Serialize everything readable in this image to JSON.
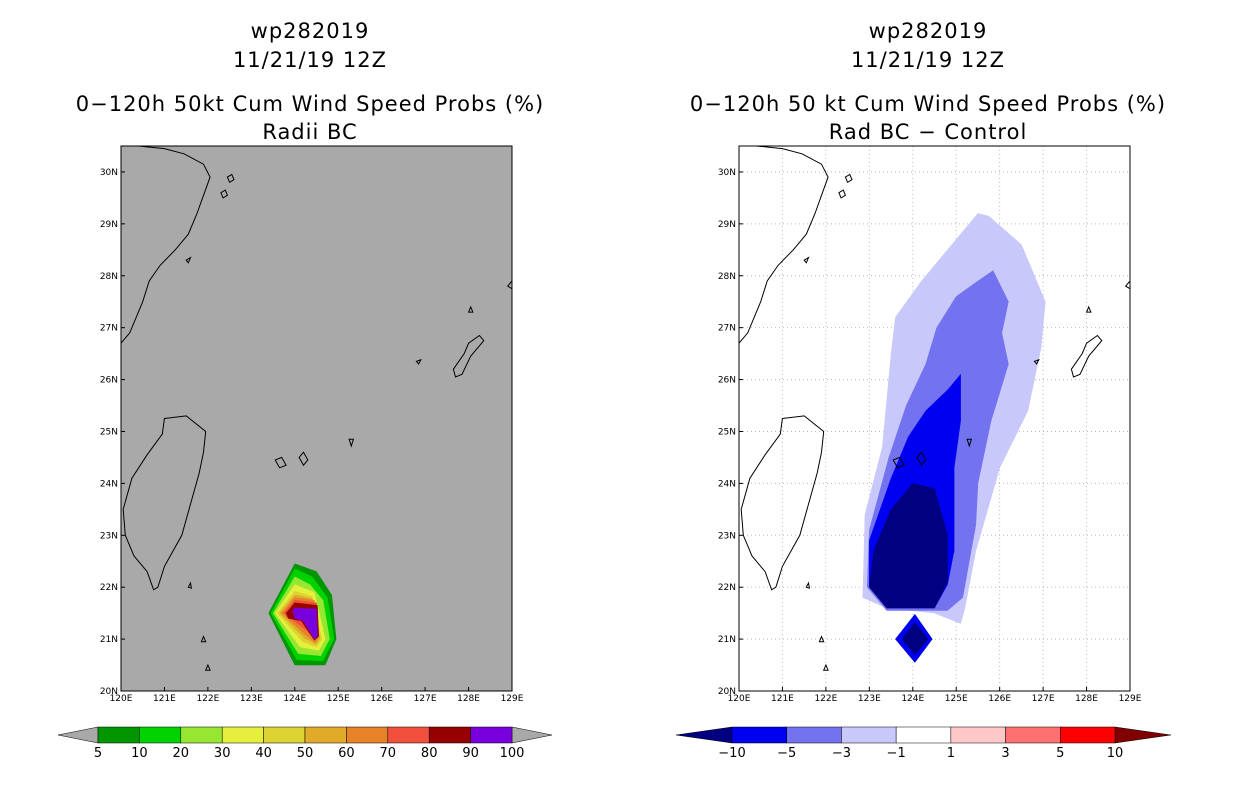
{
  "left": {
    "header": {
      "storm": "wp282019",
      "date": "11/21/19 12Z",
      "product": "0−120h 50kt Cum Wind Speed Probs (%)",
      "subtitle": "Radii BC"
    },
    "background": "#a9a9a9"
  },
  "right": {
    "header": {
      "storm": "wp282019",
      "date": "11/21/19 12Z",
      "product": "0−120h 50 kt Cum Wind Speed Probs (%)",
      "subtitle": "Rad BC − Control"
    },
    "background": "#ffffff"
  },
  "chart_data": [
    {
      "type": "heatmap",
      "title": "0-120h 50kt Cum Wind Speed Probs (%) - Radii BC",
      "x_ticks": [
        "120E",
        "121E",
        "122E",
        "123E",
        "124E",
        "125E",
        "126E",
        "127E",
        "128E",
        "129E"
      ],
      "y_ticks": [
        "20N",
        "21N",
        "22N",
        "23N",
        "24N",
        "25N",
        "26N",
        "27N",
        "28N",
        "29N",
        "30N"
      ],
      "xlim": [
        120,
        129
      ],
      "ylim": [
        20,
        30.5
      ],
      "colorbar": {
        "labels": [
          "5",
          "10",
          "20",
          "30",
          "40",
          "50",
          "60",
          "70",
          "80",
          "90",
          "100"
        ],
        "colors": [
          "#009600",
          "#00d200",
          "#96e632",
          "#e6f03c",
          "#dcd232",
          "#e1aa28",
          "#e68228",
          "#f0503c",
          "#960000",
          "#7800dc"
        ],
        "end_colors": [
          "#a9a9a9",
          "#a9a9a9"
        ]
      },
      "contours": [
        {
          "level": 5,
          "color": "#009600",
          "points": [
            [
              123.4,
              21.5
            ],
            [
              124.0,
              22.45
            ],
            [
              124.5,
              22.3
            ],
            [
              124.85,
              21.85
            ],
            [
              124.95,
              21.0
            ],
            [
              124.7,
              20.5
            ],
            [
              124.0,
              20.5
            ]
          ]
        },
        {
          "level": 10,
          "color": "#00d200",
          "points": [
            [
              123.45,
              21.5
            ],
            [
              124.0,
              22.35
            ],
            [
              124.4,
              22.2
            ],
            [
              124.75,
              21.8
            ],
            [
              124.9,
              21.0
            ],
            [
              124.65,
              20.58
            ],
            [
              124.05,
              20.6
            ]
          ]
        },
        {
          "level": 20,
          "color": "#96e632",
          "points": [
            [
              123.5,
              21.5
            ],
            [
              124.0,
              22.2
            ],
            [
              124.35,
              22.05
            ],
            [
              124.65,
              21.75
            ],
            [
              124.8,
              21.0
            ],
            [
              124.6,
              20.68
            ],
            [
              124.08,
              20.72
            ]
          ]
        },
        {
          "level": 30,
          "color": "#e6f03c",
          "points": [
            [
              123.55,
              21.5
            ],
            [
              124.0,
              22.05
            ],
            [
              124.45,
              21.9
            ],
            [
              124.7,
              21.0
            ],
            [
              124.55,
              20.78
            ],
            [
              124.12,
              20.85
            ]
          ]
        },
        {
          "level": 40,
          "color": "#dcd232",
          "points": [
            [
              123.6,
              21.5
            ],
            [
              124.0,
              21.92
            ],
            [
              124.4,
              21.82
            ],
            [
              124.62,
              21.0
            ],
            [
              124.5,
              20.85
            ],
            [
              124.18,
              20.95
            ]
          ]
        },
        {
          "level": 50,
          "color": "#e1aa28",
          "points": [
            [
              123.65,
              21.5
            ],
            [
              124.0,
              21.85
            ],
            [
              124.4,
              21.78
            ],
            [
              124.58,
              21.0
            ],
            [
              124.48,
              20.9
            ],
            [
              124.22,
              21.02
            ]
          ]
        },
        {
          "level": 60,
          "color": "#e68228",
          "points": [
            [
              123.7,
              21.5
            ],
            [
              124.0,
              21.8
            ],
            [
              124.45,
              21.75
            ],
            [
              124.55,
              21.05
            ],
            [
              124.47,
              20.93
            ],
            [
              124.25,
              21.08
            ]
          ]
        },
        {
          "level": 70,
          "color": "#f0503c",
          "points": [
            [
              123.75,
              21.5
            ],
            [
              124.0,
              21.75
            ],
            [
              124.5,
              21.7
            ],
            [
              124.55,
              21.1
            ],
            [
              124.47,
              20.97
            ],
            [
              124.3,
              21.15
            ]
          ]
        },
        {
          "level": 80,
          "color": "#960000",
          "points": [
            [
              123.8,
              21.5
            ],
            [
              124.0,
              21.7
            ],
            [
              124.52,
              21.65
            ],
            [
              124.55,
              21.05
            ],
            [
              124.45,
              20.98
            ],
            [
              124.15,
              21.35
            ],
            [
              123.85,
              21.4
            ]
          ]
        },
        {
          "level": 90,
          "color": "#7800dc",
          "points": [
            [
              123.95,
              21.55
            ],
            [
              124.0,
              21.6
            ],
            [
              124.5,
              21.58
            ],
            [
              124.52,
              21.05
            ],
            [
              124.45,
              21.0
            ],
            [
              124.2,
              21.35
            ],
            [
              124.0,
              21.4
            ]
          ]
        }
      ]
    },
    {
      "type": "heatmap",
      "title": "0-120h 50 kt Cum Wind Speed Probs (%) - Rad BC - Control",
      "x_ticks": [
        "120E",
        "121E",
        "122E",
        "123E",
        "124E",
        "125E",
        "126E",
        "127E",
        "128E",
        "129E"
      ],
      "y_ticks": [
        "20N",
        "21N",
        "22N",
        "23N",
        "24N",
        "25N",
        "26N",
        "27N",
        "28N",
        "29N",
        "30N"
      ],
      "xlim": [
        120,
        129
      ],
      "ylim": [
        20,
        30.5
      ],
      "colorbar": {
        "labels": [
          "−10",
          "−5",
          "−3",
          "−1",
          "1",
          "3",
          "5",
          "10"
        ],
        "colors": [
          "#0000f0",
          "#7373f0",
          "#c8c8fa",
          "#ffffff",
          "#ffc8c8",
          "#ff7070",
          "#ff0000"
        ],
        "end_colors": [
          "#000080",
          "#800000"
        ]
      },
      "contours": [
        {
          "level": -1,
          "color": "#c8c8fa",
          "points": [
            [
              122.85,
              21.8
            ],
            [
              122.9,
              23.4
            ],
            [
              123.3,
              24.7
            ],
            [
              123.5,
              26.5
            ],
            [
              123.6,
              27.2
            ],
            [
              124.2,
              27.9
            ],
            [
              125.0,
              28.7
            ],
            [
              125.5,
              29.2
            ],
            [
              125.75,
              29.15
            ],
            [
              126.5,
              28.6
            ],
            [
              127.05,
              27.5
            ],
            [
              126.95,
              26.6
            ],
            [
              126.65,
              25.4
            ],
            [
              126.0,
              24.3
            ],
            [
              125.45,
              22.7
            ],
            [
              125.2,
              21.6
            ],
            [
              125.1,
              21.3
            ],
            [
              124.5,
              21.5
            ],
            [
              123.4,
              21.6
            ]
          ]
        },
        {
          "level": -3,
          "color": "#7373f0",
          "points": [
            [
              122.95,
              22.0
            ],
            [
              123.0,
              23.1
            ],
            [
              123.45,
              24.5
            ],
            [
              123.85,
              25.5
            ],
            [
              124.3,
              26.3
            ],
            [
              124.55,
              27.0
            ],
            [
              125.0,
              27.6
            ],
            [
              125.5,
              27.9
            ],
            [
              125.85,
              28.1
            ],
            [
              126.2,
              27.5
            ],
            [
              126.05,
              26.9
            ],
            [
              126.2,
              26.3
            ],
            [
              125.8,
              25.2
            ],
            [
              125.5,
              24.0
            ],
            [
              125.45,
              23.2
            ],
            [
              125.15,
              21.8
            ],
            [
              124.8,
              21.55
            ],
            [
              123.4,
              21.55
            ]
          ]
        },
        {
          "level": -5,
          "color": "#0000f0",
          "points": [
            [
              123.0,
              22.0
            ],
            [
              123.0,
              22.9
            ],
            [
              123.5,
              24.1
            ],
            [
              123.9,
              24.9
            ],
            [
              124.3,
              25.4
            ],
            [
              124.8,
              25.8
            ],
            [
              125.1,
              26.1
            ],
            [
              125.1,
              25.2
            ],
            [
              124.95,
              24.3
            ],
            [
              124.95,
              23.3
            ],
            [
              124.95,
              22.7
            ],
            [
              124.8,
              22.05
            ],
            [
              124.5,
              21.6
            ],
            [
              123.4,
              21.6
            ]
          ]
        },
        {
          "level": -10,
          "color": "#000080",
          "points": [
            [
              123.0,
              22.0
            ],
            [
              123.1,
              22.7
            ],
            [
              123.5,
              23.5
            ],
            [
              124.0,
              24.0
            ],
            [
              124.5,
              23.9
            ],
            [
              124.8,
              23.0
            ],
            [
              124.8,
              22.1
            ],
            [
              124.5,
              21.6
            ],
            [
              123.4,
              21.6
            ]
          ]
        },
        {
          "level": -5,
          "color": "#0000f0",
          "points": [
            [
              123.6,
              21.0
            ],
            [
              124.05,
              21.48
            ],
            [
              124.45,
              21.0
            ],
            [
              124.05,
              20.55
            ]
          ]
        },
        {
          "level": -10,
          "color": "#000080",
          "points": [
            [
              123.75,
              21.0
            ],
            [
              124.05,
              21.32
            ],
            [
              124.35,
              21.0
            ],
            [
              124.05,
              20.7
            ]
          ]
        }
      ]
    }
  ]
}
